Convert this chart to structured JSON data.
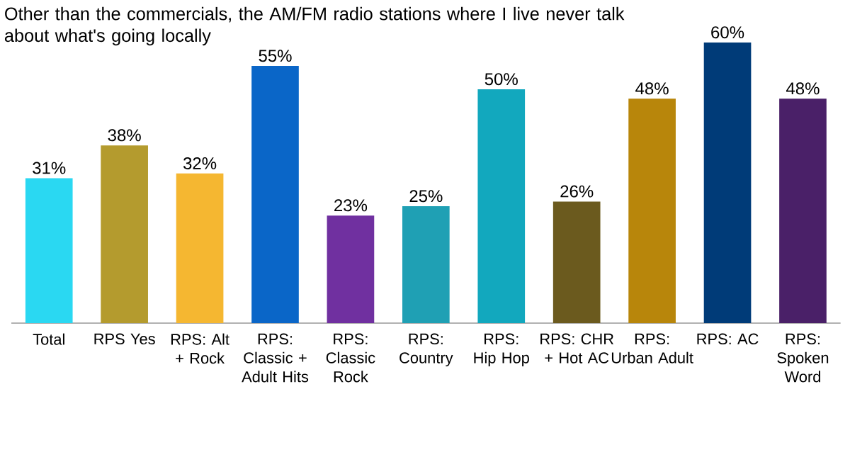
{
  "chart_data": {
    "type": "bar",
    "title": "Other than the commercials, the AM/FM radio stations where I live never talk about what's going locally",
    "categories": [
      "Total",
      "RPS Yes",
      "RPS: Alt + Rock",
      "RPS: Classic + Adult Hits",
      "RPS: Classic Rock",
      "RPS: Country",
      "RPS: Hip Hop",
      "RPS: CHR + Hot AC",
      "RPS: Urban Adult",
      "RPS: AC",
      "RPS: Spoken Word"
    ],
    "values": [
      31,
      38,
      32,
      55,
      23,
      25,
      50,
      26,
      48,
      60,
      48
    ],
    "value_labels": [
      "31%",
      "38%",
      "32%",
      "55%",
      "23%",
      "25%",
      "50%",
      "26%",
      "48%",
      "60%",
      "48%"
    ],
    "colors": [
      "#2ad8f2",
      "#b49b2e",
      "#f5b731",
      "#0a66c8",
      "#7030a0",
      "#1fa0b4",
      "#12a8be",
      "#6b5a1e",
      "#b8860b",
      "#003b78",
      "#4a2068"
    ],
    "data_labels": false
  }
}
